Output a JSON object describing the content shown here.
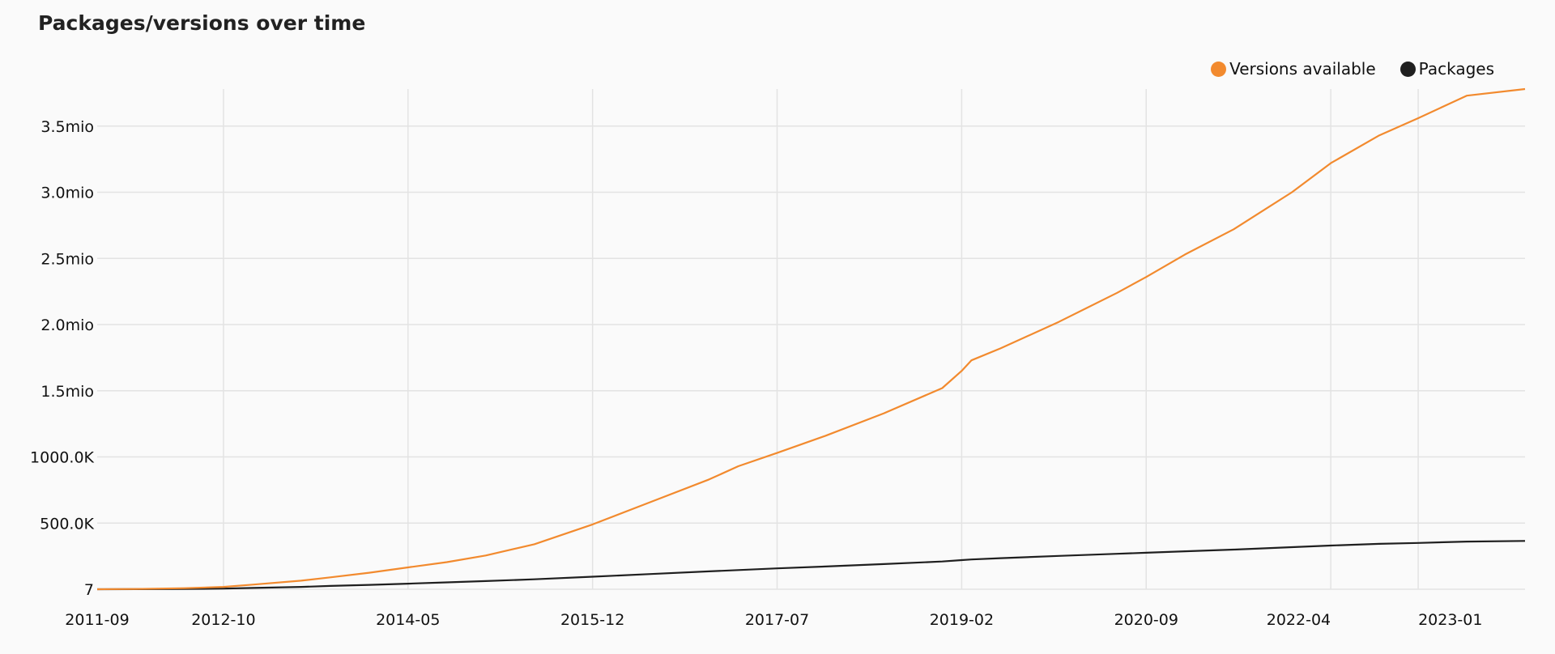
{
  "chart_data": {
    "type": "line",
    "title": "Packages/versions over time",
    "xlabel": "",
    "ylabel": "",
    "x_tick_labels": [
      "2011-09",
      "2012-10",
      "2014-05",
      "2015-12",
      "2017-07",
      "2019-02",
      "2020-09",
      "2022-04",
      "2023-01"
    ],
    "x_ticks": [
      "2011-09",
      "2012-10",
      "2014-05",
      "2015-12",
      "2017-07",
      "2019-02",
      "2020-09",
      "2022-04",
      "2023-01"
    ],
    "y_tick_labels": [
      "7",
      "500.0K",
      "1000.0K",
      "1.5mio",
      "2.0mio",
      "2.5mio",
      "3.0mio",
      "3.5mio"
    ],
    "y_ticks": [
      7,
      500000,
      1000000,
      1500000,
      2000000,
      2500000,
      3000000,
      3500000
    ],
    "xlim": [
      "2011-09",
      "2023-12"
    ],
    "ylim": [
      7,
      3780000
    ],
    "grid": true,
    "legend_position": "top-right",
    "x": [
      "2011-09",
      "2012-01",
      "2012-06",
      "2012-10",
      "2013-01",
      "2013-06",
      "2013-09",
      "2014-01",
      "2014-05",
      "2014-09",
      "2015-01",
      "2015-06",
      "2015-12",
      "2016-06",
      "2016-12",
      "2017-03",
      "2017-07",
      "2017-12",
      "2018-06",
      "2018-12",
      "2019-02",
      "2019-03",
      "2019-06",
      "2019-12",
      "2020-06",
      "2020-09",
      "2021-01",
      "2021-06",
      "2021-12",
      "2022-04",
      "2022-09",
      "2023-01",
      "2023-06",
      "2023-12"
    ],
    "series": [
      {
        "name": "Versions available",
        "color": "#f28a2e",
        "values": [
          7,
          2000,
          8000,
          18000,
          35000,
          65000,
          90000,
          125000,
          165000,
          205000,
          255000,
          340000,
          490000,
          660000,
          830000,
          930000,
          1030000,
          1160000,
          1330000,
          1520000,
          1650000,
          1730000,
          1820000,
          2020000,
          2240000,
          2360000,
          2530000,
          2720000,
          3000000,
          3220000,
          3430000,
          3560000,
          3730000,
          3780000
        ]
      },
      {
        "name": "Packages",
        "color": "#1f1f1f",
        "values": [
          7,
          500,
          2000,
          5000,
          10000,
          18000,
          25000,
          33000,
          42000,
          52000,
          62000,
          75000,
          95000,
          115000,
          135000,
          145000,
          158000,
          172000,
          190000,
          210000,
          220000,
          225000,
          235000,
          252000,
          268000,
          276000,
          287000,
          300000,
          318000,
          330000,
          343000,
          350000,
          360000,
          365000
        ]
      }
    ]
  }
}
